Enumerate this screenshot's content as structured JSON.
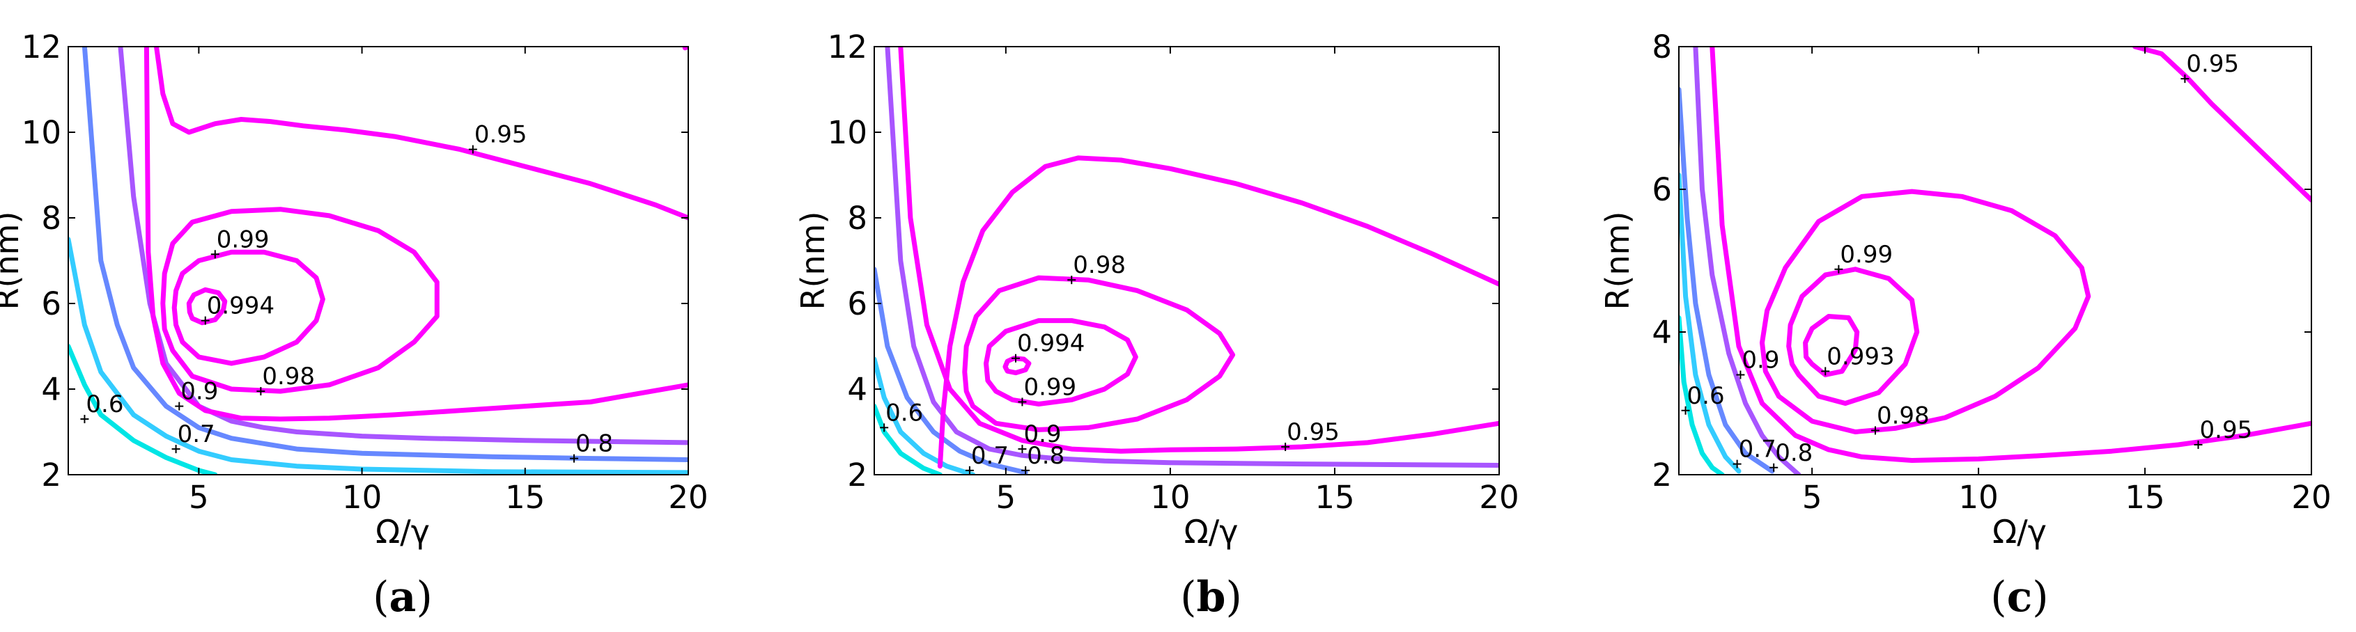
{
  "chart_data": [
    {
      "type": "line",
      "panel_label": "a",
      "xlabel": "Ω/γ",
      "ylabel": "R(nm)",
      "xlim": [
        1,
        20
      ],
      "ylim": [
        2,
        12
      ],
      "xticks": [
        5,
        10,
        15,
        20
      ],
      "xtick_labels": [
        "5",
        "10",
        "15",
        "20"
      ],
      "yticks": [
        2,
        4,
        6,
        8,
        10,
        12
      ],
      "ytick_labels": [
        "2",
        "4",
        "6",
        "8",
        "10",
        "12"
      ],
      "series": [
        {
          "name": "0.6",
          "level": 0.6,
          "color": "#00e5e5",
          "x": [
            1.0,
            1.5,
            2.0,
            3.0,
            4.0,
            5.0,
            5.5
          ],
          "y": [
            5.0,
            4.1,
            3.4,
            2.8,
            2.4,
            2.1,
            2.0
          ],
          "label_at": [
            1.5,
            3.3
          ]
        },
        {
          "name": "0.7",
          "level": 0.7,
          "color": "#33ccff",
          "x": [
            1.0,
            1.5,
            2.0,
            3.0,
            4.0,
            5.0,
            6.0,
            8.0,
            10.0,
            14.0,
            20.0
          ],
          "y": [
            7.5,
            5.5,
            4.4,
            3.4,
            2.9,
            2.55,
            2.35,
            2.2,
            2.13,
            2.07,
            2.05
          ],
          "label_at": [
            4.3,
            2.6
          ]
        },
        {
          "name": "0.8",
          "level": 0.8,
          "color": "#6688ff",
          "x": [
            1.5,
            2.0,
            2.5,
            3.0,
            4.0,
            5.0,
            6.0,
            8.0,
            10.0,
            14.0,
            17.0,
            20.0
          ],
          "y": [
            12.0,
            7.0,
            5.5,
            4.5,
            3.6,
            3.1,
            2.85,
            2.6,
            2.5,
            2.42,
            2.38,
            2.35
          ],
          "label_at": [
            16.5,
            2.38
          ]
        },
        {
          "name": "0.9",
          "level": 0.9,
          "color": "#a855ff",
          "x": [
            2.6,
            3.0,
            3.5,
            4.0,
            5.0,
            6.0,
            7.0,
            8.0,
            10.0,
            12.0,
            15.0,
            20.0
          ],
          "y": [
            12.0,
            8.5,
            6.0,
            4.6,
            3.6,
            3.25,
            3.1,
            3.0,
            2.9,
            2.85,
            2.8,
            2.75
          ],
          "label_at": [
            4.4,
            3.6
          ]
        },
        {
          "name": "0.95",
          "level": 0.95,
          "color": "#ff00ff",
          "x": [
            3.7,
            3.9,
            4.2,
            4.7,
            5.5,
            6.3,
            7.2,
            8.2,
            9.5,
            11.0,
            13.0,
            15.0,
            17.0,
            19.0,
            20.0
          ],
          "y": [
            12.0,
            10.9,
            10.2,
            10.0,
            10.2,
            10.3,
            10.25,
            10.15,
            10.05,
            9.9,
            9.6,
            9.2,
            8.8,
            8.3,
            8.0
          ],
          "label_at": [
            13.4,
            9.6
          ]
        },
        {
          "name": "0.95",
          "level": 0.95,
          "color": "#ff00ff",
          "x": [
            20.0,
            17.0,
            15.0,
            13.0,
            11.0,
            9.0,
            7.5,
            6.3,
            5.2,
            4.4,
            3.9,
            3.6,
            3.45,
            3.4
          ],
          "y": [
            4.1,
            3.7,
            3.6,
            3.5,
            3.4,
            3.32,
            3.3,
            3.32,
            3.5,
            3.9,
            4.6,
            5.7,
            7.2,
            12.0
          ],
          "label_at": null
        },
        {
          "name": "0.95",
          "level": 0.95,
          "color": "#ff00ff",
          "x": [
            19.9,
            20.0
          ],
          "y": [
            11.97,
            12.0
          ],
          "label_at": null
        },
        {
          "name": "0.98",
          "level": 0.98,
          "color": "#ff00ff",
          "closed": true,
          "x": [
            4.2,
            4.8,
            6.0,
            7.5,
            9.0,
            10.5,
            11.6,
            12.3,
            12.3,
            11.6,
            10.5,
            9.0,
            7.5,
            6.0,
            4.8,
            4.2,
            3.95,
            3.9,
            3.95
          ],
          "y": [
            4.9,
            4.3,
            4.0,
            3.95,
            4.1,
            4.5,
            5.1,
            5.7,
            6.5,
            7.2,
            7.7,
            8.05,
            8.2,
            8.15,
            7.9,
            7.4,
            6.7,
            6.0,
            5.4
          ],
          "label_at": [
            6.9,
            3.95
          ]
        },
        {
          "name": "0.99",
          "level": 0.99,
          "color": "#ff00ff",
          "closed": true,
          "x": [
            4.5,
            5.0,
            6.0,
            7.0,
            8.0,
            8.6,
            8.8,
            8.6,
            8.0,
            7.0,
            6.0,
            5.0,
            4.5,
            4.3,
            4.25,
            4.3
          ],
          "y": [
            5.1,
            4.75,
            4.6,
            4.75,
            5.1,
            5.6,
            6.1,
            6.6,
            7.0,
            7.2,
            7.2,
            7.0,
            6.7,
            6.3,
            5.9,
            5.5
          ],
          "label_at": [
            5.5,
            7.15
          ]
        },
        {
          "name": "0.994",
          "level": 0.994,
          "color": "#ff00ff",
          "closed": true,
          "x": [
            4.8,
            5.1,
            5.5,
            5.75,
            5.8,
            5.6,
            5.2,
            4.85,
            4.7,
            4.72
          ],
          "y": [
            5.65,
            5.55,
            5.62,
            5.85,
            6.05,
            6.25,
            6.32,
            6.2,
            6.0,
            5.8
          ],
          "label_at": [
            5.2,
            5.6
          ]
        }
      ]
    },
    {
      "type": "line",
      "panel_label": "b",
      "xlabel": "Ω/γ",
      "ylabel": "R(nm)",
      "xlim": [
        1,
        20
      ],
      "ylim": [
        2,
        12
      ],
      "xticks": [
        5,
        10,
        15,
        20
      ],
      "xtick_labels": [
        "5",
        "10",
        "15",
        "20"
      ],
      "yticks": [
        2,
        4,
        6,
        8,
        10,
        12
      ],
      "ytick_labels": [
        "2",
        "4",
        "6",
        "8",
        "10",
        "12"
      ],
      "series": [
        {
          "name": "0.6",
          "level": 0.6,
          "color": "#00e5e5",
          "x": [
            1.0,
            1.3,
            1.8,
            2.5,
            3.0
          ],
          "y": [
            3.6,
            3.0,
            2.5,
            2.15,
            2.0
          ],
          "label_at": [
            1.3,
            3.1
          ]
        },
        {
          "name": "0.7",
          "level": 0.7,
          "color": "#33ccff",
          "x": [
            1.0,
            1.3,
            1.8,
            2.5,
            3.2,
            4.0
          ],
          "y": [
            4.7,
            3.8,
            3.0,
            2.5,
            2.2,
            2.0
          ],
          "label_at": [
            3.9,
            2.1
          ]
        },
        {
          "name": "0.8",
          "level": 0.8,
          "color": "#6688ff",
          "x": [
            1.0,
            1.4,
            2.0,
            2.8,
            3.6,
            4.5,
            5.6
          ],
          "y": [
            6.8,
            5.0,
            3.8,
            3.0,
            2.55,
            2.25,
            2.05
          ],
          "label_at": [
            5.6,
            2.1
          ]
        },
        {
          "name": "0.9",
          "level": 0.9,
          "color": "#a855ff",
          "x": [
            1.4,
            1.8,
            2.2,
            2.8,
            3.5,
            4.5,
            5.5,
            6.5,
            8.0,
            10.0,
            14.0,
            20.0
          ],
          "y": [
            12.0,
            7.0,
            5.0,
            3.7,
            3.0,
            2.6,
            2.45,
            2.38,
            2.32,
            2.28,
            2.25,
            2.22
          ],
          "label_at": [
            5.5,
            2.6
          ]
        },
        {
          "name": "0.95",
          "level": 0.95,
          "color": "#ff00ff",
          "x": [
            1.8,
            2.1,
            2.6,
            3.3,
            4.2,
            5.5,
            7.0,
            8.5,
            10.0,
            12.0,
            14.0,
            16.0,
            18.0,
            20.0
          ],
          "y": [
            12.0,
            8.0,
            5.5,
            4.0,
            3.2,
            2.8,
            2.6,
            2.55,
            2.58,
            2.6,
            2.65,
            2.75,
            2.95,
            3.2
          ],
          "label_at": [
            13.5,
            2.65
          ]
        },
        {
          "name": "0.95",
          "level": 0.95,
          "color": "#ff00ff",
          "x": [
            3.0,
            3.1,
            3.3,
            3.7,
            4.3,
            5.2,
            6.2,
            7.2,
            8.5,
            10.0,
            12.0,
            14.0,
            16.0,
            18.0,
            20.0
          ],
          "y": [
            2.2,
            3.5,
            5.0,
            6.5,
            7.7,
            8.6,
            9.2,
            9.4,
            9.35,
            9.15,
            8.8,
            8.35,
            7.8,
            7.15,
            6.45
          ],
          "label_at": null
        },
        {
          "name": "0.98",
          "level": 0.98,
          "color": "#ff00ff",
          "closed": true,
          "x": [
            4.0,
            4.7,
            6.0,
            7.5,
            9.0,
            10.5,
            11.5,
            11.9,
            11.5,
            10.5,
            9.0,
            7.5,
            6.0,
            4.8,
            4.1,
            3.8,
            3.75,
            3.8
          ],
          "y": [
            3.6,
            3.2,
            3.05,
            3.1,
            3.3,
            3.75,
            4.3,
            4.8,
            5.3,
            5.85,
            6.3,
            6.55,
            6.6,
            6.3,
            5.7,
            5.0,
            4.4,
            3.95
          ],
          "label_at": [
            7.0,
            6.55
          ]
        },
        {
          "name": "0.99",
          "level": 0.99,
          "color": "#ff00ff",
          "closed": true,
          "x": [
            4.7,
            5.2,
            6.0,
            7.0,
            8.0,
            8.7,
            8.95,
            8.7,
            8.0,
            7.0,
            6.0,
            5.0,
            4.5,
            4.4,
            4.45
          ],
          "y": [
            3.95,
            3.75,
            3.65,
            3.75,
            4.0,
            4.35,
            4.75,
            5.15,
            5.45,
            5.6,
            5.6,
            5.35,
            5.0,
            4.6,
            4.2
          ],
          "label_at": [
            5.5,
            3.7
          ]
        },
        {
          "name": "0.994",
          "level": 0.994,
          "color": "#ff00ff",
          "closed": true,
          "x": [
            5.05,
            5.3,
            5.6,
            5.7,
            5.55,
            5.25,
            5.05,
            4.98
          ],
          "y": [
            4.42,
            4.38,
            4.45,
            4.6,
            4.7,
            4.72,
            4.65,
            4.52
          ],
          "label_at": [
            5.3,
            4.72
          ]
        }
      ]
    },
    {
      "type": "line",
      "panel_label": "c",
      "xlabel": "Ω/γ",
      "ylabel": "R(nm)",
      "xlim": [
        1,
        20
      ],
      "ylim": [
        2,
        8
      ],
      "xticks": [
        5,
        10,
        15,
        20
      ],
      "xtick_labels": [
        "5",
        "10",
        "15",
        "20"
      ],
      "yticks": [
        2,
        4,
        6,
        8
      ],
      "ytick_labels": [
        "2",
        "4",
        "6",
        "8"
      ],
      "series": [
        {
          "name": "0.6",
          "level": 0.6,
          "color": "#00e5e5",
          "x": [
            1.0,
            1.15,
            1.4,
            1.7,
            2.0,
            2.3
          ],
          "y": [
            4.2,
            3.3,
            2.7,
            2.3,
            2.1,
            2.0
          ],
          "label_at": [
            1.2,
            2.9
          ]
        },
        {
          "name": "0.7",
          "level": 0.7,
          "color": "#33ccff",
          "x": [
            1.0,
            1.2,
            1.5,
            1.9,
            2.4,
            2.8
          ],
          "y": [
            6.2,
            4.5,
            3.4,
            2.7,
            2.25,
            2.05
          ],
          "label_at": [
            2.75,
            2.15
          ]
        },
        {
          "name": "0.8",
          "level": 0.8,
          "color": "#6688ff",
          "x": [
            1.0,
            1.25,
            1.5,
            1.9,
            2.4,
            3.0,
            3.8
          ],
          "y": [
            7.4,
            5.6,
            4.4,
            3.4,
            2.7,
            2.3,
            2.05
          ],
          "label_at": [
            3.85,
            2.1
          ]
        },
        {
          "name": "0.9",
          "level": 0.9,
          "color": "#a855ff",
          "x": [
            1.5,
            1.7,
            2.0,
            2.5,
            3.0,
            3.5,
            4.0,
            4.6
          ],
          "y": [
            8.0,
            6.0,
            4.8,
            3.7,
            3.0,
            2.55,
            2.25,
            2.0
          ],
          "label_at": [
            2.85,
            3.4
          ]
        },
        {
          "name": "0.95",
          "level": 0.95,
          "color": "#ff00ff",
          "x": [
            2.0,
            2.3,
            2.8,
            3.5,
            4.5,
            5.5,
            6.5,
            8.0,
            10.0,
            12.0,
            14.0,
            16.0,
            18.0,
            20.0
          ],
          "y": [
            8.0,
            5.5,
            3.8,
            3.0,
            2.55,
            2.35,
            2.25,
            2.2,
            2.22,
            2.27,
            2.33,
            2.42,
            2.55,
            2.72
          ],
          "label_at": [
            16.6,
            2.42
          ]
        },
        {
          "name": "0.95",
          "level": 0.95,
          "color": "#ff00ff",
          "x": [
            14.7,
            15.5,
            16.3,
            17.0,
            18.0,
            19.0,
            20.0
          ],
          "y": [
            8.0,
            7.9,
            7.55,
            7.2,
            6.75,
            6.3,
            5.85
          ],
          "label_at": [
            16.2,
            7.55
          ]
        },
        {
          "name": "0.98",
          "level": 0.98,
          "color": "#ff00ff",
          "closed": true,
          "x": [
            4.0,
            5.0,
            6.3,
            7.5,
            9.0,
            10.5,
            11.8,
            12.9,
            13.3,
            13.1,
            12.3,
            11.0,
            9.5,
            8.0,
            6.5,
            5.2,
            4.2,
            3.65,
            3.5,
            3.6
          ],
          "y": [
            3.1,
            2.75,
            2.6,
            2.65,
            2.8,
            3.1,
            3.5,
            4.05,
            4.5,
            4.9,
            5.35,
            5.7,
            5.9,
            5.97,
            5.9,
            5.55,
            4.9,
            4.3,
            3.85,
            3.45
          ],
          "label_at": [
            6.9,
            2.62
          ]
        },
        {
          "name": "0.99",
          "level": 0.99,
          "color": "#ff00ff",
          "closed": true,
          "x": [
            4.6,
            5.2,
            6.0,
            7.0,
            7.8,
            8.15,
            8.0,
            7.3,
            6.3,
            5.4,
            4.7,
            4.35,
            4.3,
            4.4
          ],
          "y": [
            3.4,
            3.1,
            3.0,
            3.15,
            3.55,
            4.0,
            4.45,
            4.75,
            4.88,
            4.8,
            4.5,
            4.1,
            3.8,
            3.55
          ],
          "label_at": [
            5.8,
            4.88
          ]
        },
        {
          "name": "0.993",
          "level": 0.993,
          "color": "#ff00ff",
          "closed": true,
          "x": [
            5.0,
            5.4,
            5.9,
            6.3,
            6.35,
            6.1,
            5.5,
            5.0,
            4.8,
            4.82
          ],
          "y": [
            3.55,
            3.4,
            3.45,
            3.75,
            4.0,
            4.2,
            4.22,
            4.05,
            3.85,
            3.65
          ],
          "label_at": [
            5.4,
            3.45
          ]
        }
      ]
    }
  ]
}
